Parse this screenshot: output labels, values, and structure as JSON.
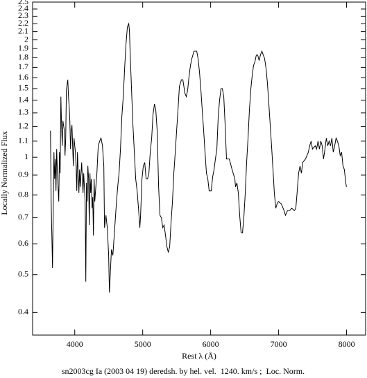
{
  "chart_data": {
    "type": "line",
    "xlabel": "Rest λ (Å)",
    "ylabel": "Locally Normalized Flux",
    "caption": "sn2003cg Ia (2003 04 19) deredsh. by hel. vel.  1240. km/s ;  Loc. Norm.",
    "color": "#000000",
    "log_y": true,
    "grid": false,
    "xlim": [
      3380,
      8280
    ],
    "ylim": [
      0.35,
      2.5
    ],
    "xticks": [
      4000,
      5000,
      6000,
      7000,
      8000
    ],
    "yticks": [
      0.4,
      0.5,
      0.6,
      0.7,
      0.8,
      0.9,
      1,
      1.1,
      1.2,
      1.3,
      1.4,
      1.5,
      1.6,
      1.7,
      1.8,
      1.9,
      2,
      2.1,
      2.2,
      2.3,
      2.4,
      2.5
    ],
    "x": [
      3643,
      3653,
      3673,
      3683,
      3694,
      3704,
      3714,
      3724,
      3734,
      3745,
      3765,
      3775,
      3785,
      3796,
      3806,
      3816,
      3826,
      3847,
      3857,
      3867,
      3877,
      3898,
      3908,
      3918,
      3928,
      3938,
      3949,
      3959,
      3969,
      3979,
      3989,
      4010,
      4020,
      4030,
      4040,
      4051,
      4061,
      4071,
      4081,
      4102,
      4112,
      4122,
      4132,
      4153,
      4163,
      4173,
      4183,
      4193,
      4204,
      4214,
      4224,
      4234,
      4244,
      4255,
      4265,
      4275,
      4285,
      4295,
      4306,
      4326,
      4336,
      4346,
      4367,
      4387,
      4408,
      4428,
      4438,
      4459,
      4479,
      4499,
      4510,
      4520,
      4540,
      4561,
      4581,
      4612,
      4632,
      4652,
      4673,
      4693,
      4714,
      4734,
      4754,
      4775,
      4795,
      4805,
      4816,
      4836,
      4856,
      4877,
      4897,
      4918,
      4938,
      4958,
      4969,
      4989,
      5009,
      5030,
      5050,
      5071,
      5091,
      5111,
      5132,
      5152,
      5173,
      5193,
      5213,
      5234,
      5254,
      5275,
      5295,
      5315,
      5336,
      5356,
      5377,
      5397,
      5417,
      5438,
      5458,
      5479,
      5499,
      5519,
      5540,
      5570,
      5591,
      5621,
      5642,
      5662,
      5683,
      5703,
      5723,
      5754,
      5795,
      5815,
      5836,
      5856,
      5876,
      5897,
      5917,
      5938,
      5958,
      5978,
      6009,
      6029,
      6050,
      6070,
      6091,
      6111,
      6131,
      6152,
      6172,
      6193,
      6213,
      6233,
      6274,
      6315,
      6356,
      6366,
      6386,
      6407,
      6427,
      6448,
      6468,
      6488,
      6509,
      6529,
      6550,
      6570,
      6590,
      6611,
      6631,
      6652,
      6672,
      6692,
      6713,
      6733,
      6754,
      6774,
      6794,
      6815,
      6835,
      6856,
      6876,
      6896,
      6917,
      6937,
      6958,
      6978,
      6998,
      7039,
      7080,
      7100,
      7131,
      7162,
      7192,
      7233,
      7253,
      7274,
      7294,
      7315,
      7335,
      7355,
      7396,
      7417,
      7437,
      7457,
      7478,
      7498,
      7539,
      7559,
      7580,
      7600,
      7621,
      7641,
      7661,
      7682,
      7702,
      7723,
      7743,
      7763,
      7784,
      7804,
      7825,
      7845,
      7865,
      7886,
      7906,
      7927,
      7947,
      7967,
      7988,
      7998
    ],
    "values": [
      1.17,
      0.77,
      0.52,
      0.74,
      1.03,
      0.88,
      0.99,
      0.82,
      1.05,
      0.91,
      0.77,
      1.03,
      0.91,
      1.43,
      1.21,
      1.07,
      1.24,
      1.17,
      1.01,
      1.12,
      1.49,
      1.58,
      1.43,
      1.35,
      1.24,
      1.05,
      1.17,
      1.21,
      1.07,
      0.95,
      1.12,
      1.03,
      0.95,
      0.82,
      1.03,
      0.91,
      0.81,
      0.93,
      0.84,
      0.97,
      0.88,
      0.81,
      0.91,
      0.77,
      0.48,
      0.86,
      0.77,
      0.95,
      0.88,
      0.67,
      0.91,
      0.81,
      0.88,
      0.74,
      0.79,
      0.63,
      0.88,
      0.77,
      0.82,
      0.91,
      0.99,
      1.07,
      1.1,
      1.12,
      1.07,
      0.95,
      0.66,
      0.71,
      0.66,
      0.56,
      0.45,
      0.49,
      0.58,
      0.56,
      0.63,
      0.76,
      0.84,
      0.91,
      1.05,
      1.27,
      1.43,
      1.69,
      1.95,
      2.16,
      2.2,
      2.11,
      1.83,
      1.49,
      1.21,
      1.03,
      0.88,
      0.82,
      0.74,
      0.66,
      0.71,
      0.88,
      0.95,
      0.97,
      0.88,
      0.88,
      0.91,
      1.03,
      1.12,
      1.29,
      1.37,
      1.32,
      1.17,
      0.84,
      0.71,
      0.7,
      0.66,
      0.67,
      0.63,
      0.59,
      0.57,
      0.59,
      0.68,
      0.77,
      0.91,
      1.03,
      1.17,
      1.32,
      1.52,
      1.58,
      1.58,
      1.46,
      1.43,
      1.49,
      1.62,
      1.72,
      1.79,
      1.87,
      1.87,
      1.79,
      1.65,
      1.49,
      1.32,
      1.17,
      1.03,
      0.91,
      0.88,
      0.82,
      0.82,
      0.89,
      0.93,
      0.99,
      1.05,
      1.27,
      1.4,
      1.5,
      1.5,
      1.43,
      1.21,
      0.99,
      0.99,
      0.93,
      0.88,
      0.84,
      0.86,
      0.81,
      0.71,
      0.64,
      0.64,
      0.7,
      0.81,
      0.97,
      1.12,
      1.32,
      1.49,
      1.62,
      1.72,
      1.76,
      1.83,
      1.83,
      1.77,
      1.83,
      1.87,
      1.83,
      1.79,
      1.69,
      1.55,
      1.37,
      1.21,
      1.07,
      0.93,
      0.81,
      0.74,
      0.76,
      0.77,
      0.76,
      0.73,
      0.71,
      0.73,
      0.73,
      0.74,
      0.73,
      0.74,
      0.82,
      0.91,
      0.95,
      0.91,
      0.97,
      0.99,
      1.01,
      1.03,
      1.07,
      1.1,
      1.05,
      1.07,
      1.05,
      1.1,
      1.05,
      1.1,
      1.07,
      0.99,
      1.05,
      1.12,
      1.07,
      1.1,
      1.07,
      1.12,
      1.03,
      1.07,
      1.12,
      1.1,
      1.07,
      1.01,
      1.03,
      0.95,
      0.93,
      0.86,
      0.84
    ]
  }
}
